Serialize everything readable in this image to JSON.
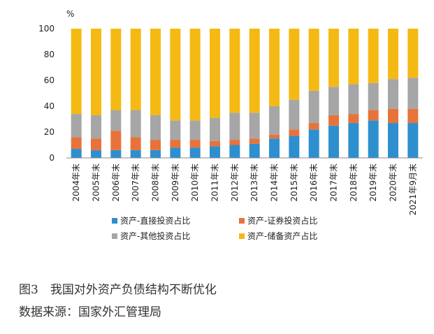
{
  "chart_data": {
    "type": "bar",
    "stacked": true,
    "unit_label": "%",
    "ylim": [
      0,
      100
    ],
    "y_ticks": [
      0,
      20,
      40,
      60,
      80,
      100
    ],
    "grid": false,
    "legend_position": "bottom",
    "categories": [
      "2004年末",
      "2005年末",
      "2006年末",
      "2007年末",
      "2008年末",
      "2009年末",
      "2010年末",
      "2011年末",
      "2012年末",
      "2013年末",
      "2014年末",
      "2015年末",
      "2016年末",
      "2017年末",
      "2018年末",
      "2019年末",
      "2020年末",
      "2021年9月末"
    ],
    "series": [
      {
        "name": "资产-直接投资占比",
        "color": "#2e8fcf",
        "values": [
          7,
          6,
          6,
          6,
          6,
          8,
          8,
          9,
          10,
          11,
          15,
          17,
          22,
          25,
          27,
          29,
          27,
          27
        ]
      },
      {
        "name": "资产-证券投资占比",
        "color": "#e8733a",
        "values": [
          9,
          9,
          15,
          10,
          8,
          6,
          6,
          4,
          4,
          4,
          3,
          5,
          5,
          8,
          7,
          8,
          11,
          11
        ]
      },
      {
        "name": "资产-其他投资占比",
        "color": "#a6a6a6",
        "values": [
          18,
          18,
          16,
          21,
          19,
          15,
          15,
          18,
          21,
          20,
          22,
          23,
          25,
          22,
          23,
          21,
          23,
          24
        ]
      },
      {
        "name": "资产-储备资产占比",
        "color": "#f5b914",
        "values": [
          66,
          67,
          63,
          63,
          67,
          71,
          71,
          69,
          65,
          65,
          60,
          55,
          48,
          45,
          43,
          42,
          39,
          38
        ]
      }
    ]
  },
  "figure": {
    "title": "图3　我国对外资产负债结构不断优化",
    "source": "数据来源：国家外汇管理局"
  }
}
